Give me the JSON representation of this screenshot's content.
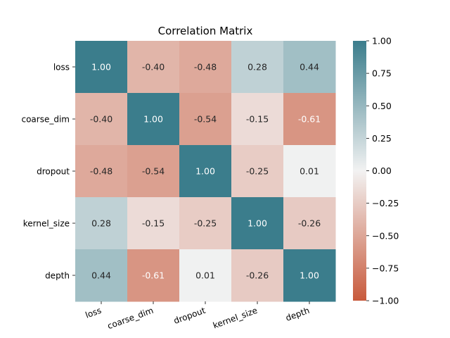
{
  "chart_data": {
    "type": "heatmap",
    "title": "Correlation Matrix",
    "rows": [
      "loss",
      "coarse_dim",
      "dropout",
      "kernel_size",
      "depth"
    ],
    "columns": [
      "loss",
      "coarse_dim",
      "dropout",
      "kernel_size",
      "depth"
    ],
    "values": [
      [
        1.0,
        -0.4,
        -0.48,
        0.28,
        0.44
      ],
      [
        -0.4,
        1.0,
        -0.54,
        -0.15,
        -0.61
      ],
      [
        -0.48,
        -0.54,
        1.0,
        -0.25,
        0.01
      ],
      [
        0.28,
        -0.15,
        -0.25,
        1.0,
        -0.26
      ],
      [
        0.44,
        -0.61,
        0.01,
        -0.26,
        1.0
      ]
    ],
    "value_format": "2 decimals",
    "colorbar": {
      "range": [
        -1.0,
        1.0
      ],
      "ticks": [
        "−1.00",
        "−0.75",
        "−0.50",
        "−0.25",
        "0.00",
        "0.25",
        "0.50",
        "0.75",
        "1.00"
      ],
      "colors": {
        "negative": "#c85a3c",
        "center": "#f2f2f2",
        "positive": "#3b7d8c"
      }
    },
    "xtick_rotation": "slanted",
    "grid": false,
    "legend": "colorbar right"
  }
}
